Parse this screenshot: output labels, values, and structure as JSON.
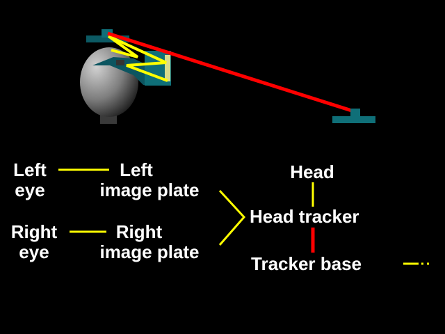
{
  "colors": {
    "background": "#000000",
    "text": "#ffffff",
    "yellow": "#ffff00",
    "red": "#ff0000",
    "teal": "#0f6f78",
    "plate": "#d9dc8c",
    "head_gray": "#8a8a8a"
  },
  "labels": {
    "left_eye": [
      "Left",
      "eye"
    ],
    "left_plate": [
      "Left",
      "image plate"
    ],
    "right_eye": [
      "Right",
      "eye"
    ],
    "right_plate": [
      "Right",
      "image plate"
    ],
    "head": "Head",
    "head_tracker": "Head tracker",
    "tracker_base": "Tracker base"
  },
  "illustration": {
    "head": "head-shape",
    "tracker_mount": "head-tracker",
    "base": "tracker-base",
    "link": "tracking-link"
  }
}
